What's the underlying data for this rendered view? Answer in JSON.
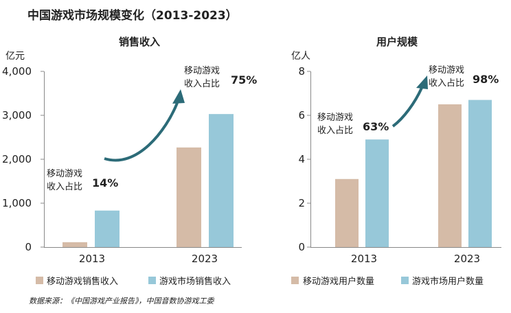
{
  "title": "中国游戏市场规模变化（2013-2023）",
  "source": "数据来源：《中国游戏产业报告》，中国音数协游戏工委",
  "colors": {
    "mobile": "#d5bba7",
    "market": "#97c8d9",
    "arrow": "#2c6b78",
    "axis": "#888888"
  },
  "chart_data": [
    {
      "type": "bar",
      "title": "销售收入",
      "unit": "亿元",
      "categories": [
        "2013",
        "2023"
      ],
      "ylim": [
        0,
        4000
      ],
      "yticks": [
        "0",
        "1,000",
        "2,000",
        "3,000",
        "4,000"
      ],
      "series": [
        {
          "name": "移动游戏销售收入",
          "values": [
            112,
            2268
          ]
        },
        {
          "name": "游戏市场销售收入",
          "values": [
            832,
            3029
          ]
        }
      ],
      "annotations": [
        {
          "label_line1": "移动游戏",
          "label_line2": "收入占比",
          "value": "14%"
        },
        {
          "label_line1": "移动游戏",
          "label_line2": "收入占比",
          "value": "75%"
        }
      ]
    },
    {
      "type": "bar",
      "title": "用户规模",
      "unit": "亿人",
      "categories": [
        "2013",
        "2023"
      ],
      "ylim": [
        0,
        8
      ],
      "yticks": [
        "0",
        "2",
        "4",
        "6",
        "8"
      ],
      "series": [
        {
          "name": "移动游戏用户数量",
          "values": [
            3.1,
            6.5
          ]
        },
        {
          "name": "游戏市场用户数量",
          "values": [
            4.9,
            6.7
          ]
        }
      ],
      "annotations": [
        {
          "label_line1": "移动游戏",
          "label_line2": "收入占比",
          "value": "63%"
        },
        {
          "label_line1": "移动游戏",
          "label_line2": "收入占比",
          "value": "98%"
        }
      ]
    }
  ]
}
